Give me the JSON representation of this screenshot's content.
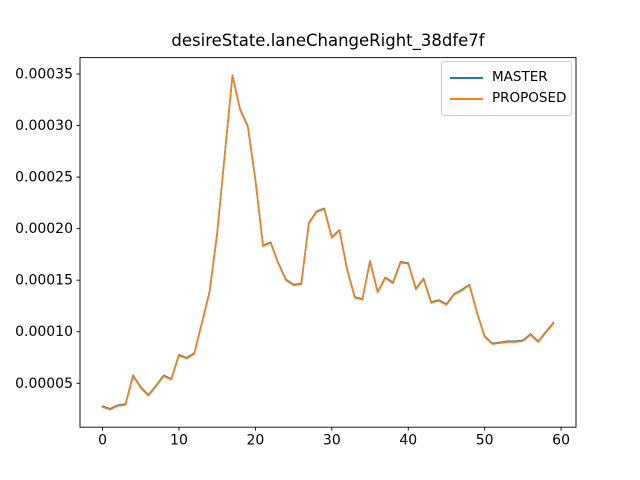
{
  "chart_data": {
    "type": "line",
    "title": "desireState.laneChangeRight_38dfe7f",
    "xlabel": "",
    "ylabel": "",
    "grid": false,
    "legend_position": "upper right",
    "xlim": [
      -2.95,
      61.95
    ],
    "ylim": [
      7.4e-06,
      0.0003659
    ],
    "xticks": [
      0,
      10,
      20,
      30,
      40,
      50,
      60
    ],
    "xtick_labels": [
      "0",
      "10",
      "20",
      "30",
      "40",
      "50",
      "60"
    ],
    "yticks": [
      5e-05,
      0.0001,
      0.00015,
      0.0002,
      0.00025,
      0.0003,
      0.00035
    ],
    "ytick_labels": [
      "0.00005",
      "0.00010",
      "0.00015",
      "0.00020",
      "0.00025",
      "0.00030",
      "0.00035"
    ],
    "x": [
      0,
      1,
      2,
      3,
      4,
      5,
      6,
      7,
      8,
      9,
      10,
      11,
      12,
      13,
      14,
      15,
      16,
      17,
      18,
      19,
      20,
      21,
      22,
      23,
      24,
      25,
      26,
      27,
      28,
      29,
      30,
      31,
      32,
      33,
      34,
      35,
      36,
      37,
      38,
      39,
      40,
      41,
      42,
      43,
      44,
      45,
      46,
      47,
      48,
      49,
      50,
      51,
      52,
      53,
      54,
      55,
      56,
      57,
      58,
      59
    ],
    "series": [
      {
        "name": "MASTER",
        "color": "#1f77b4",
        "values": [
          2.7e-05,
          2.45e-05,
          2.8e-05,
          2.9e-05,
          5.7e-05,
          4.55e-05,
          3.8e-05,
          4.7e-05,
          5.7e-05,
          5.35e-05,
          7.7e-05,
          7.4e-05,
          7.85e-05,
          0.000108,
          0.000138,
          0.000195,
          0.000272,
          0.000348,
          0.000315,
          0.000299,
          0.000247,
          0.000183,
          0.000186,
          0.000166,
          0.00015,
          0.000145,
          0.000146,
          0.000205,
          0.000216,
          0.000219,
          0.000191,
          0.000198,
          0.00016,
          0.000133,
          0.000131,
          0.000168,
          0.000138,
          0.000152,
          0.000147,
          0.000167,
          0.000166,
          0.000141,
          0.000151,
          0.000128,
          0.00013,
          0.000126,
          0.000136,
          0.00014,
          0.000145,
          0.000118,
          9.5e-05,
          8.8e-05,
          8.9e-05,
          9e-05,
          9e-05,
          9.1e-05,
          9.7e-05,
          9e-05,
          9.9e-05,
          0.000108
        ]
      },
      {
        "name": "PROPOSED",
        "color": "#ff7f0e",
        "values": [
          2.7e-05,
          2.45e-05,
          2.8e-05,
          2.9e-05,
          5.7e-05,
          4.55e-05,
          3.8e-05,
          4.7e-05,
          5.7e-05,
          5.35e-05,
          7.7e-05,
          7.4e-05,
          7.85e-05,
          0.000108,
          0.000138,
          0.000195,
          0.000272,
          0.000348,
          0.000315,
          0.000299,
          0.000247,
          0.000183,
          0.000186,
          0.000166,
          0.00015,
          0.000145,
          0.000146,
          0.000205,
          0.000216,
          0.000219,
          0.000191,
          0.000198,
          0.00016,
          0.000133,
          0.000131,
          0.000168,
          0.000138,
          0.000152,
          0.000147,
          0.000167,
          0.000166,
          0.000141,
          0.000151,
          0.000128,
          0.00013,
          0.000126,
          0.000136,
          0.00014,
          0.000145,
          0.000118,
          9.5e-05,
          8.8e-05,
          8.9e-05,
          9e-05,
          9e-05,
          9.1e-05,
          9.7e-05,
          9e-05,
          9.9e-05,
          0.000108
        ]
      }
    ]
  }
}
